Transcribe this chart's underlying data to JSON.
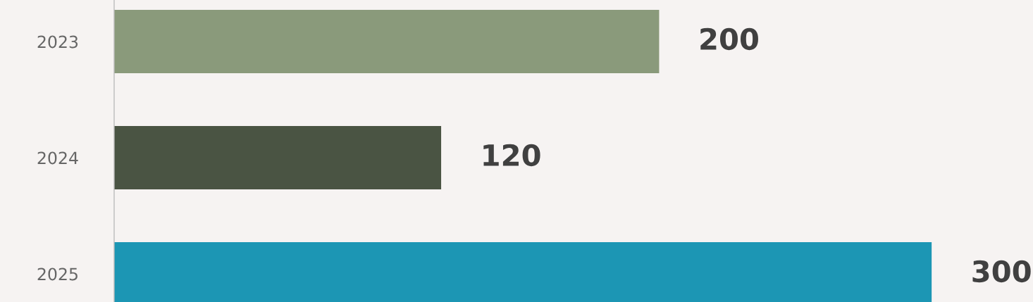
{
  "chart_data": {
    "type": "bar",
    "orientation": "horizontal",
    "categories": [
      "2023",
      "2024",
      "2025"
    ],
    "values": [
      200,
      120,
      300
    ],
    "colors": [
      "#8a9a7b",
      "#4a5443",
      "#1c96b4"
    ],
    "data_labels": true,
    "grid": false,
    "legend": false
  }
}
